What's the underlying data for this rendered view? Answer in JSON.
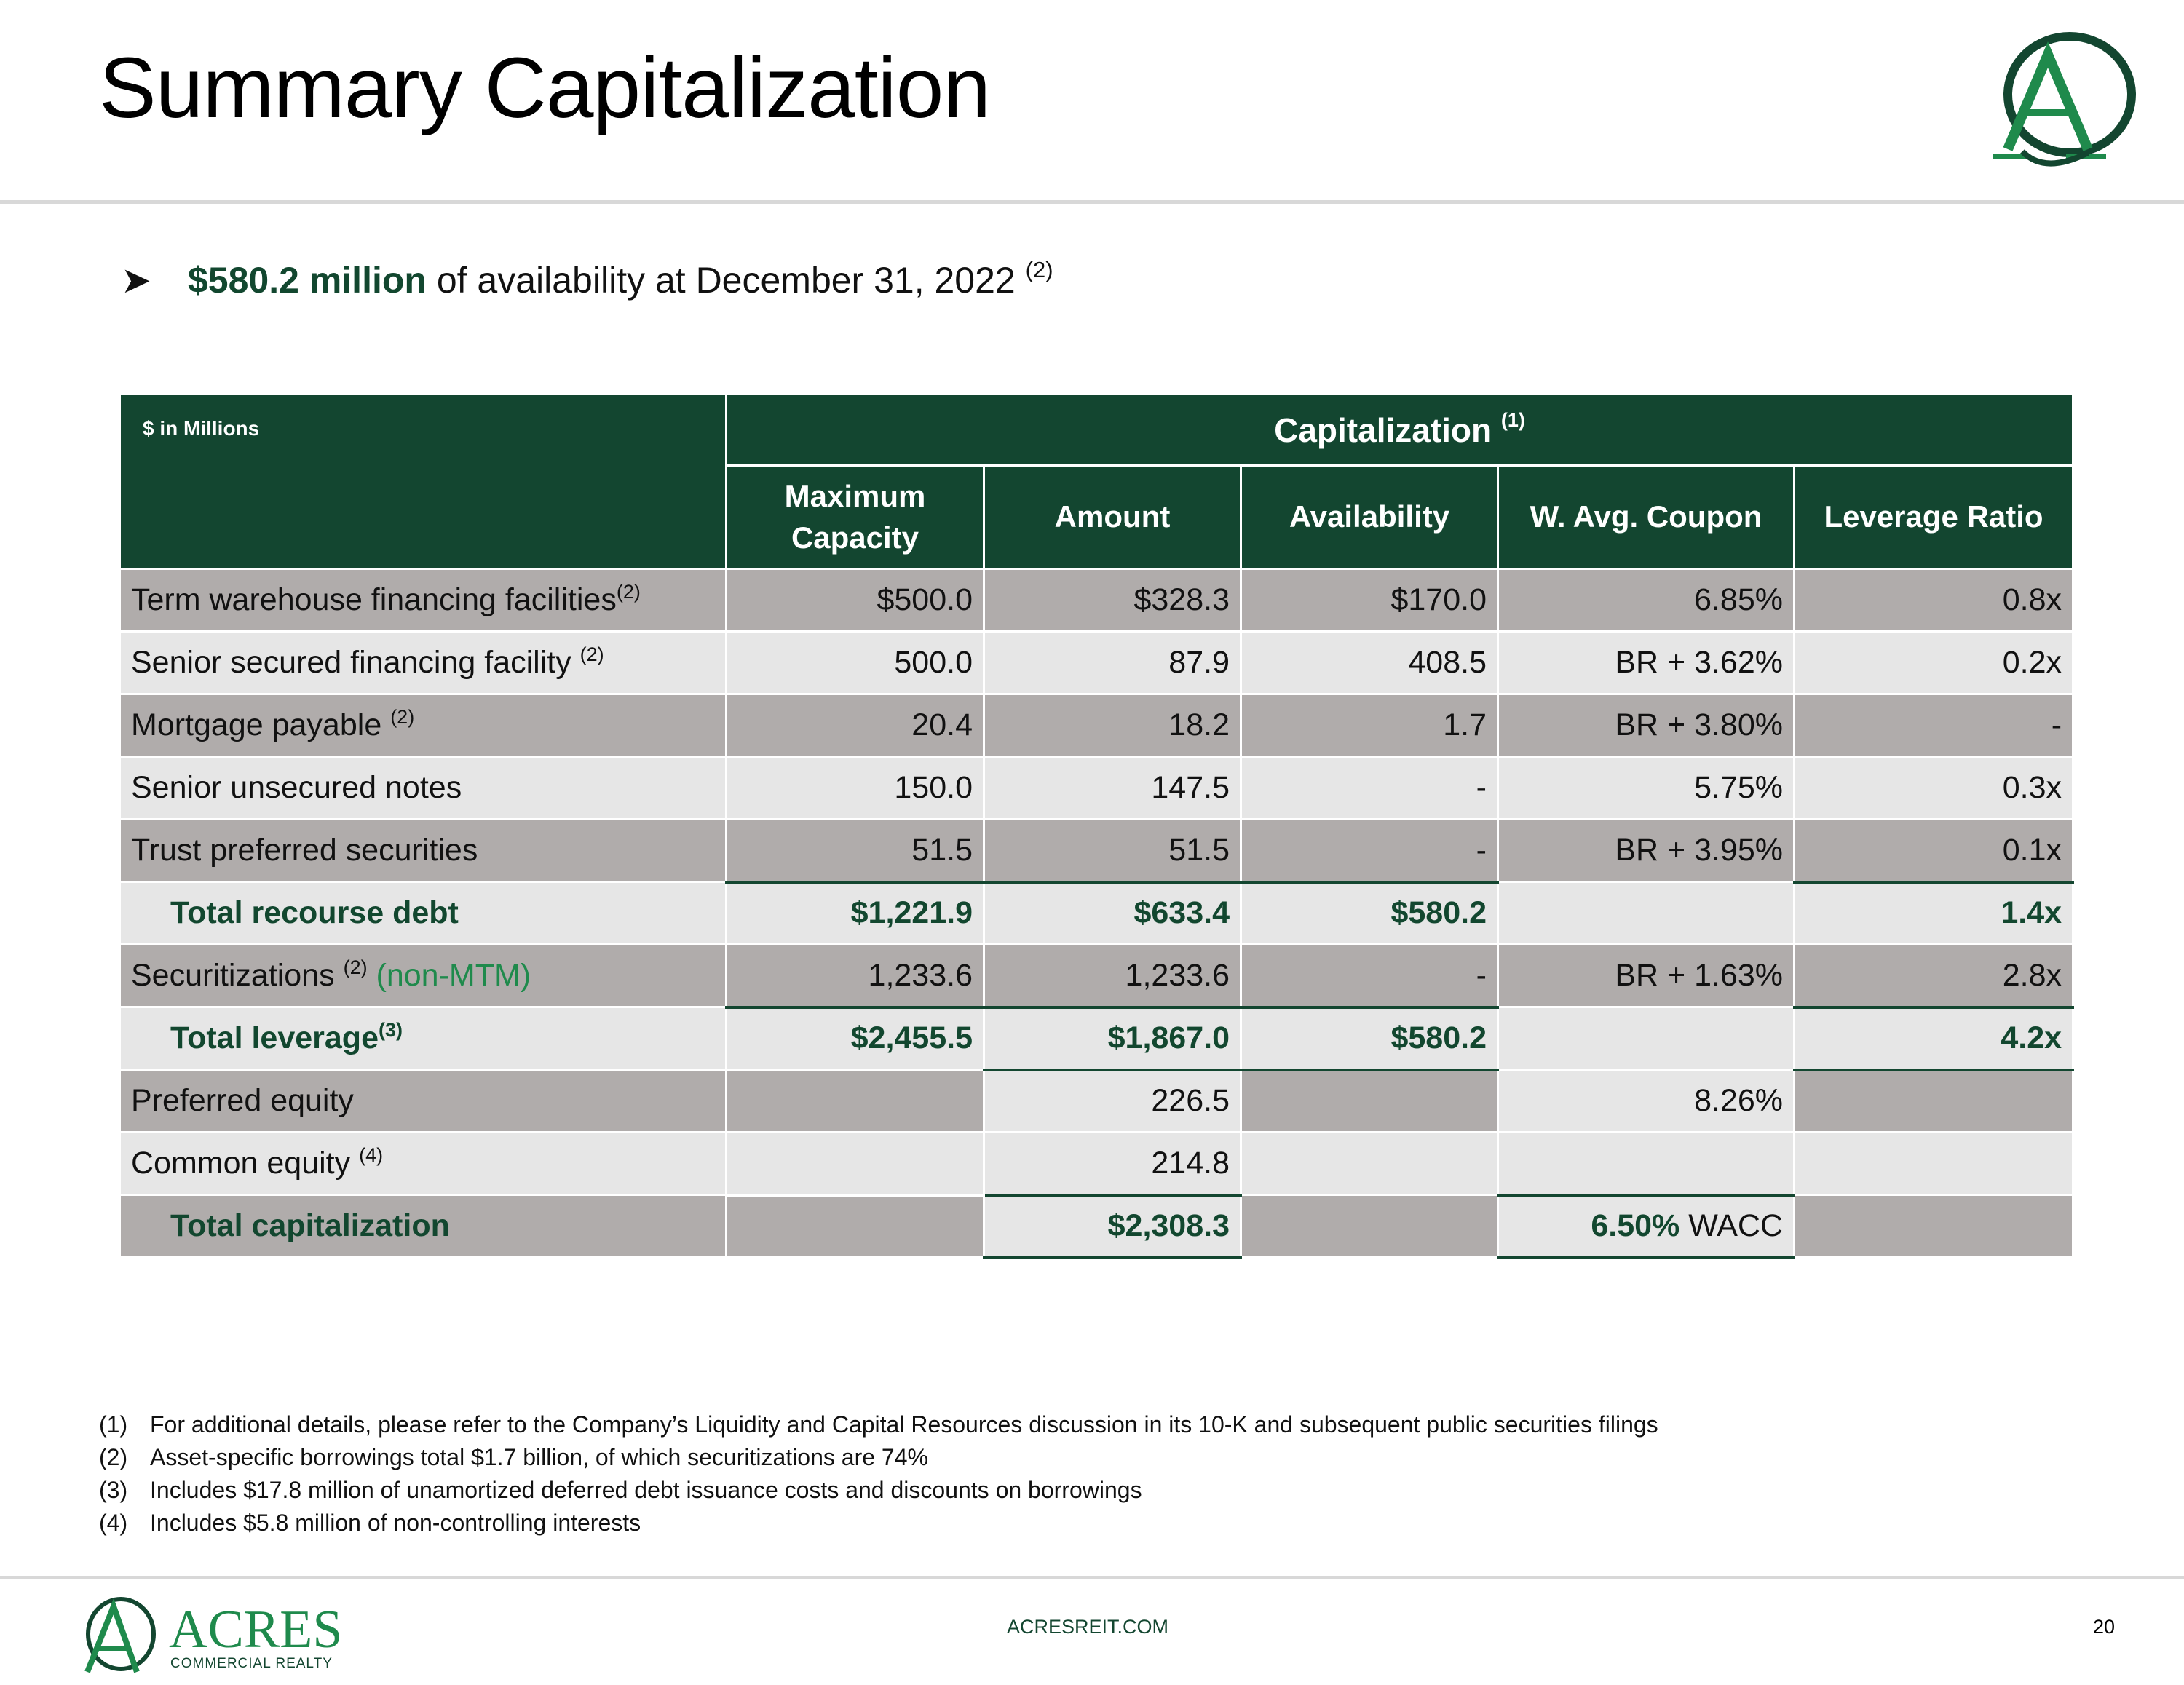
{
  "title": "Summary Capitalization",
  "bullet": {
    "highlight": "$580.2 million",
    "text": " of availability at December 31, 2022 ",
    "note": "(2)"
  },
  "table": {
    "units_label": "$ in Millions",
    "group_header": "Capitalization ",
    "group_note": "(1)",
    "columns": [
      "Maximum Capacity",
      "Amount",
      "Availability",
      "W. Avg. Coupon",
      "Leverage Ratio"
    ],
    "rows": [
      {
        "label": "Term warehouse financing facilities",
        "note": "(2)",
        "cells": [
          "$500.0",
          "$328.3",
          "$170.0",
          "6.85%",
          "0.8x"
        ]
      },
      {
        "label": "Senior secured financing facility ",
        "note": "(2)",
        "cells": [
          "500.0",
          "87.9",
          "408.5",
          "BR + 3.62%",
          "0.2x"
        ]
      },
      {
        "label": "Mortgage payable ",
        "note": "(2)",
        "cells": [
          "20.4",
          "18.2",
          "1.7",
          "BR + 3.80%",
          "-"
        ]
      },
      {
        "label": "Senior unsecured notes",
        "cells": [
          "150.0",
          "147.5",
          "-",
          "5.75%",
          "0.3x"
        ]
      },
      {
        "label": "Trust preferred securities",
        "cells": [
          "51.5",
          "51.5",
          "-",
          "BR + 3.95%",
          "0.1x"
        ]
      },
      {
        "label": "Total recourse debt",
        "cells": [
          "$1,221.9",
          "$633.4",
          "$580.2",
          "",
          "1.4x"
        ]
      },
      {
        "label": "Securitizations ",
        "note": "(2)",
        "suffix": " (non-MTM)",
        "cells": [
          "1,233.6",
          "1,233.6",
          "-",
          "BR + 1.63%",
          "2.8x"
        ]
      },
      {
        "label": "Total leverage",
        "note": "(3)",
        "cells": [
          "$2,455.5",
          "$1,867.0",
          "$580.2",
          "",
          "4.2x"
        ]
      },
      {
        "label": "Preferred equity",
        "cells": [
          "",
          "226.5",
          "",
          "8.26%",
          ""
        ]
      },
      {
        "label": "Common equity ",
        "note": "(4)",
        "cells": [
          "",
          "214.8",
          "",
          "",
          ""
        ]
      },
      {
        "label": "Total capitalization",
        "cells": [
          "",
          "$2,308.3",
          "",
          "6.50%",
          ""
        ],
        "coupon_suffix": " WACC"
      }
    ]
  },
  "footnotes": [
    {
      "num": "(1)",
      "text": "For additional details, please refer to the Company’s Liquidity and Capital Resources discussion in its 10-K and subsequent public securities filings"
    },
    {
      "num": "(2)",
      "text": "Asset-specific borrowings total $1.7 billion, of which securitizations are 74%"
    },
    {
      "num": "(3)",
      "text": "Includes $17.8 million of unamortized deferred debt issuance costs and discounts on borrowings"
    },
    {
      "num": "(4)",
      "text": "Includes $5.8 million of non-controlling interests"
    }
  ],
  "footer": {
    "logo_word": "ACRES",
    "logo_sub": "COMMERCIAL REALTY",
    "url": "ACRESREIT.COM",
    "page": "20"
  },
  "colors": {
    "brand_dark_green": "#134630",
    "accent_green": "#1f8a4c",
    "row_dark": "#b0acab",
    "row_light": "#e6e6e6"
  }
}
